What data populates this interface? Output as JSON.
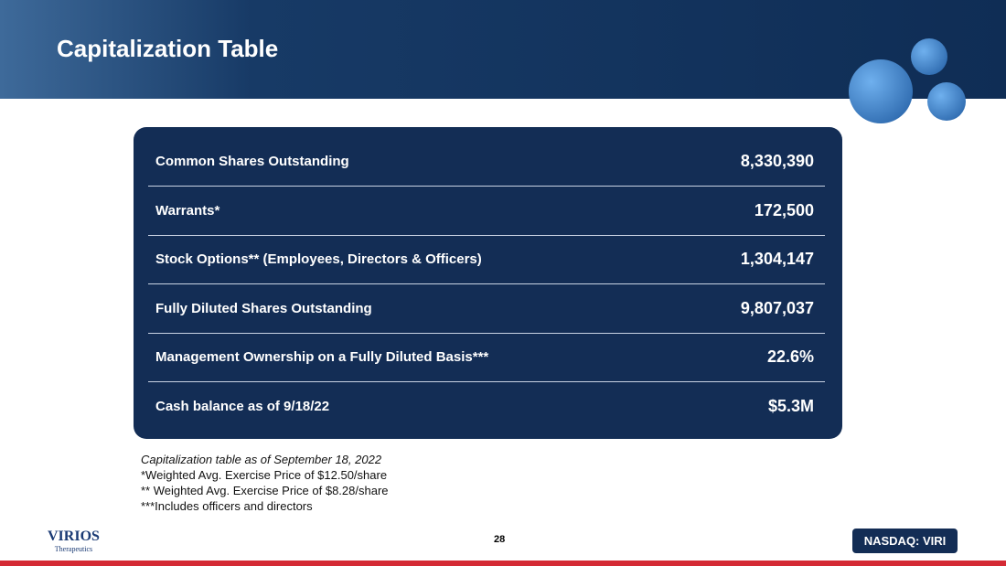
{
  "header": {
    "title": "Capitalization Table"
  },
  "table": {
    "rows": [
      [
        "Common Shares Outstanding",
        "8,330,390"
      ],
      [
        "Warrants*",
        "172,500"
      ],
      [
        "Stock Options** (Employees, Directors & Officers)",
        "1,304,147"
      ],
      [
        "Fully Diluted Shares Outstanding",
        "9,807,037"
      ],
      [
        "Management Ownership on a Fully Diluted Basis***",
        "22.6%"
      ],
      [
        "Cash balance as of 9/18/22",
        "$5.3M"
      ]
    ]
  },
  "notes": {
    "italic": "Capitalization table as of September 18, 2022",
    "lines": [
      "*Weighted Avg. Exercise Price of $12.50/share",
      "** Weighted Avg. Exercise Price of $8.28/share",
      "***Includes officers and directors"
    ]
  },
  "footer": {
    "logo": "VIRIOS",
    "logo_sub": "Therapeutics",
    "page": "28",
    "ticker": "NASDAQ: VIRI"
  }
}
